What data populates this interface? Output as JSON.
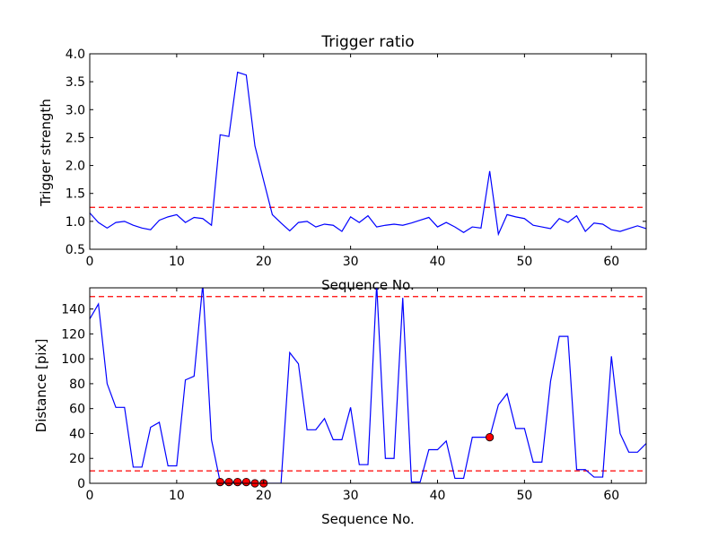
{
  "chart_data": [
    {
      "type": "line",
      "title": "Trigger ratio",
      "xlabel": "Sequence No.",
      "ylabel": "Trigger strength",
      "xlim": [
        0,
        64
      ],
      "ylim": [
        0.5,
        4.0
      ],
      "xticks": [
        "0",
        "10",
        "20",
        "30",
        "40",
        "50",
        "60"
      ],
      "yticks": [
        "0.5",
        "1.0",
        "1.5",
        "2.0",
        "2.5",
        "3.0",
        "3.5",
        "4.0"
      ],
      "grid": false,
      "line_color": "#0000ff",
      "threshold_color": "#ff0000",
      "thresholds": [
        1.25
      ],
      "x": [
        0,
        1,
        2,
        3,
        4,
        5,
        6,
        7,
        8,
        9,
        10,
        11,
        12,
        13,
        14,
        15,
        16,
        17,
        18,
        19,
        20,
        21,
        22,
        23,
        24,
        25,
        26,
        27,
        28,
        29,
        30,
        31,
        32,
        33,
        34,
        35,
        36,
        37,
        38,
        39,
        40,
        41,
        42,
        43,
        44,
        45,
        46,
        47,
        48,
        49,
        50,
        51,
        52,
        53,
        54,
        55,
        56,
        57,
        58,
        59,
        60,
        61,
        62,
        63,
        64
      ],
      "y": [
        1.15,
        0.98,
        0.88,
        0.98,
        1.0,
        0.93,
        0.88,
        0.85,
        1.02,
        1.08,
        1.12,
        0.98,
        1.07,
        1.05,
        0.93,
        2.55,
        2.52,
        3.67,
        3.62,
        2.35,
        1.73,
        1.12,
        0.97,
        0.83,
        0.98,
        1.0,
        0.9,
        0.95,
        0.93,
        0.82,
        1.08,
        0.98,
        1.1,
        0.9,
        0.93,
        0.95,
        0.93,
        0.97,
        1.02,
        1.07,
        0.9,
        0.98,
        0.9,
        0.8,
        0.9,
        0.88,
        1.9,
        0.77,
        1.12,
        1.08,
        1.05,
        0.93,
        0.9,
        0.87,
        1.05,
        0.98,
        1.1,
        0.82,
        0.97,
        0.95,
        0.85,
        0.82,
        0.87,
        0.92,
        0.87
      ]
    },
    {
      "type": "line",
      "title": "",
      "xlabel": "Sequence No.",
      "ylabel": "Distance [pix]",
      "xlim": [
        0,
        64
      ],
      "ylim": [
        0,
        157
      ],
      "xticks": [
        "0",
        "10",
        "20",
        "30",
        "40",
        "50",
        "60"
      ],
      "yticks": [
        "0",
        "20",
        "40",
        "60",
        "80",
        "100",
        "120",
        "140"
      ],
      "grid": false,
      "line_color": "#0000ff",
      "threshold_color": "#ff0000",
      "marker_color": "#ff0000",
      "thresholds": [
        150,
        10
      ],
      "x": [
        0,
        1,
        2,
        3,
        4,
        5,
        6,
        7,
        8,
        9,
        10,
        11,
        12,
        13,
        14,
        15,
        16,
        17,
        18,
        19,
        20,
        21,
        22,
        23,
        24,
        25,
        26,
        27,
        28,
        29,
        30,
        31,
        32,
        33,
        34,
        35,
        36,
        37,
        38,
        39,
        40,
        41,
        42,
        43,
        44,
        45,
        46,
        47,
        48,
        49,
        50,
        51,
        52,
        53,
        54,
        55,
        56,
        57,
        58,
        59,
        60,
        61,
        62,
        63,
        64
      ],
      "y": [
        132,
        144,
        80,
        61,
        61,
        13,
        13,
        45,
        49,
        14,
        14,
        83,
        86,
        160,
        35,
        1,
        1,
        1,
        1,
        0,
        0,
        0,
        0,
        105,
        96,
        43,
        43,
        52,
        35,
        35,
        61,
        15,
        15,
        160,
        20,
        20,
        149,
        1,
        1,
        27,
        27,
        34,
        4,
        4,
        37,
        37,
        37,
        63,
        72,
        44,
        44,
        17,
        17,
        82,
        118,
        118,
        11,
        11,
        5,
        5,
        102,
        40,
        25,
        25,
        32
      ],
      "markers": [
        {
          "x": 15,
          "y": 1
        },
        {
          "x": 16,
          "y": 1
        },
        {
          "x": 17,
          "y": 1
        },
        {
          "x": 18,
          "y": 1
        },
        {
          "x": 19,
          "y": 0
        },
        {
          "x": 20,
          "y": 0
        },
        {
          "x": 46,
          "y": 37
        }
      ]
    }
  ]
}
